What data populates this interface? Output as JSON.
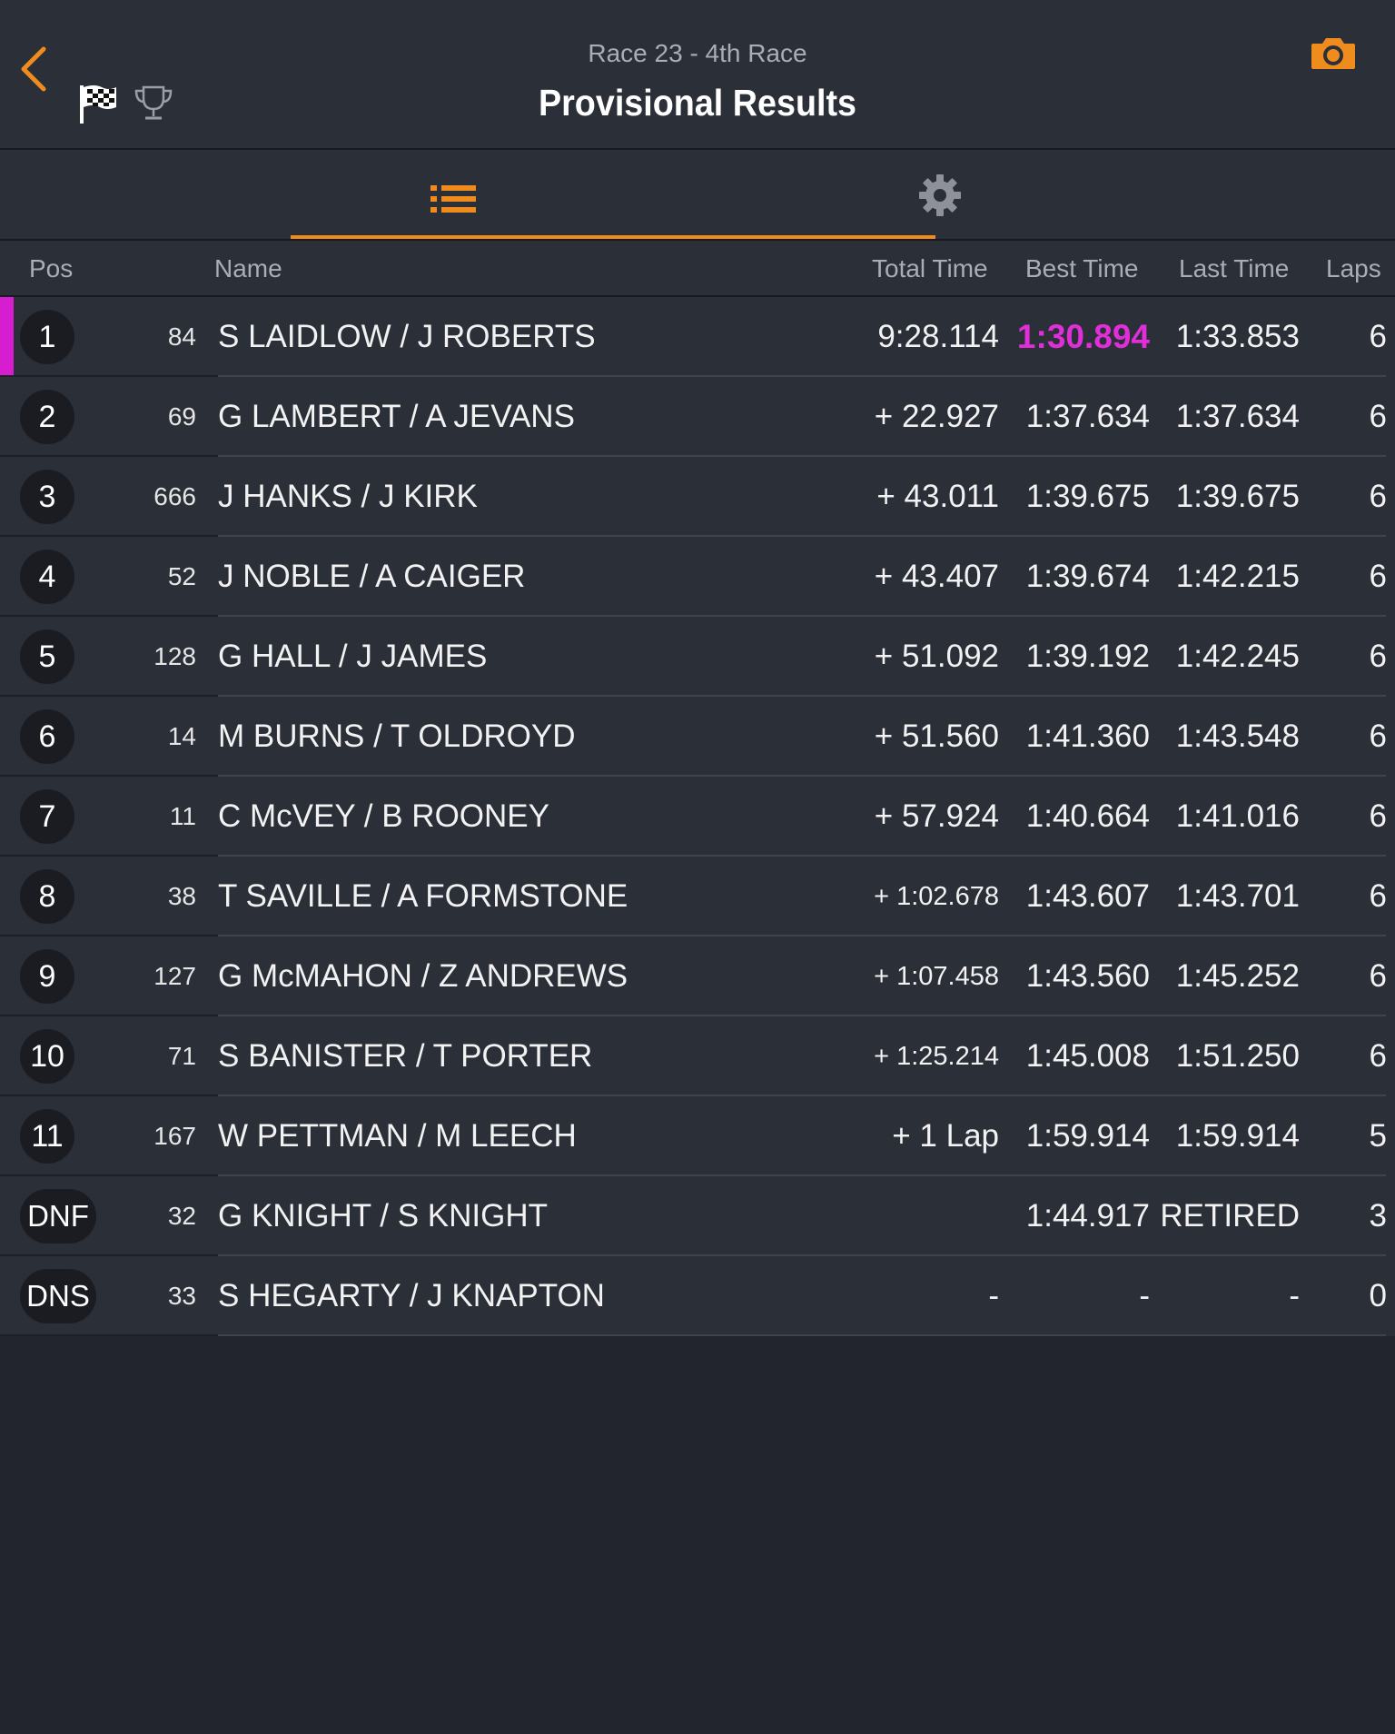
{
  "header": {
    "subtitle": "Race 23 - 4th Race",
    "title": "Provisional Results"
  },
  "icons": {
    "back": "chevron-left-icon",
    "flag": "checkered-flag-icon",
    "trophy": "trophy-icon",
    "camera": "camera-icon",
    "list": "list-icon",
    "settings": "gear-icon"
  },
  "colors": {
    "accent": "#f08c1e",
    "fastest": "#e02ed8",
    "background": "#22252d",
    "row": "#2b2f38"
  },
  "tabs": {
    "active": "list"
  },
  "columns": {
    "pos": "Pos",
    "name": "Name",
    "total": "Total Time",
    "best": "Best Time",
    "last": "Last Time",
    "laps": "Laps"
  },
  "results": [
    {
      "pos": "1",
      "num": "84",
      "name": "S LAIDLOW / J ROBERTS",
      "total": "9:28.114",
      "best": "1:30.894",
      "last": "1:33.853",
      "laps": "6",
      "fastest": true
    },
    {
      "pos": "2",
      "num": "69",
      "name": "G LAMBERT / A JEVANS",
      "total": "+ 22.927",
      "best": "1:37.634",
      "last": "1:37.634",
      "laps": "6"
    },
    {
      "pos": "3",
      "num": "666",
      "name": "J HANKS / J KIRK",
      "total": "+ 43.011",
      "best": "1:39.675",
      "last": "1:39.675",
      "laps": "6"
    },
    {
      "pos": "4",
      "num": "52",
      "name": "J NOBLE / A CAIGER",
      "total": "+ 43.407",
      "best": "1:39.674",
      "last": "1:42.215",
      "laps": "6"
    },
    {
      "pos": "5",
      "num": "128",
      "name": "G HALL / J JAMES",
      "total": "+ 51.092",
      "best": "1:39.192",
      "last": "1:42.245",
      "laps": "6"
    },
    {
      "pos": "6",
      "num": "14",
      "name": "M BURNS / T OLDROYD",
      "total": "+ 51.560",
      "best": "1:41.360",
      "last": "1:43.548",
      "laps": "6"
    },
    {
      "pos": "7",
      "num": "11",
      "name": "C McVEY / B ROONEY",
      "total": "+ 57.924",
      "best": "1:40.664",
      "last": "1:41.016",
      "laps": "6"
    },
    {
      "pos": "8",
      "num": "38",
      "name": "T SAVILLE / A FORMSTONE",
      "total": "+ 1:02.678",
      "best": "1:43.607",
      "last": "1:43.701",
      "laps": "6",
      "small": true
    },
    {
      "pos": "9",
      "num": "127",
      "name": "G McMAHON / Z ANDREWS",
      "total": "+ 1:07.458",
      "best": "1:43.560",
      "last": "1:45.252",
      "laps": "6",
      "small": true
    },
    {
      "pos": "10",
      "num": "71",
      "name": "S BANISTER / T PORTER",
      "total": "+ 1:25.214",
      "best": "1:45.008",
      "last": "1:51.250",
      "laps": "6",
      "small": true
    },
    {
      "pos": "11",
      "num": "167",
      "name": "W PETTMAN / M LEECH",
      "total": "+ 1 Lap",
      "best": "1:59.914",
      "last": "1:59.914",
      "laps": "5"
    },
    {
      "pos": "DNF",
      "num": "32",
      "name": "G KNIGHT / S KNIGHT",
      "total": "",
      "best": "1:44.917",
      "last": "RETIRED",
      "laps": "3"
    },
    {
      "pos": "DNS",
      "num": "33",
      "name": "S HEGARTY / J KNAPTON",
      "total": "-",
      "best": "-",
      "last": "-",
      "laps": "0"
    }
  ]
}
